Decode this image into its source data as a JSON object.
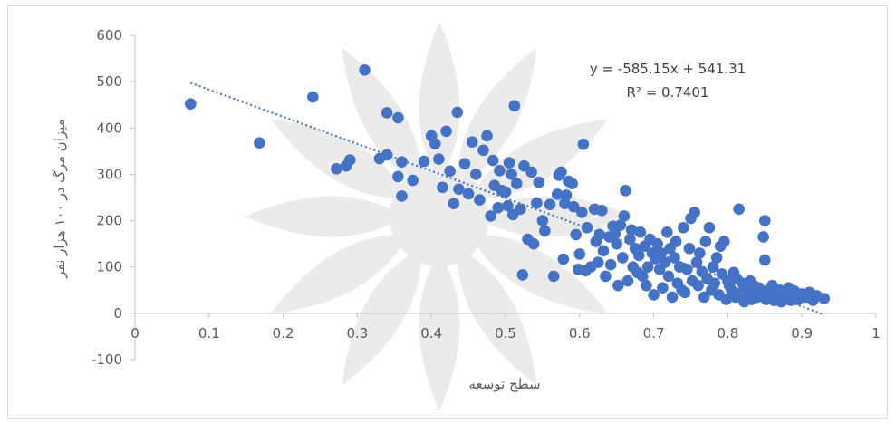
{
  "chart_data": {
    "type": "scatter",
    "xlabel": "سطح توسعه",
    "ylabel": "میزان مرگ در ۱۰۰ هزار نفر",
    "xlim": [
      0,
      1
    ],
    "ylim": [
      -100,
      600
    ],
    "x_ticks": [
      "0",
      "0.1",
      "0.2",
      "0.3",
      "0.4",
      "0.5",
      "0.6",
      "0.7",
      "0.8",
      "0.9",
      "1"
    ],
    "y_ticks": [
      "-100",
      "0",
      "100",
      "200",
      "300",
      "400",
      "500",
      "600"
    ],
    "grid": false,
    "legend": "none",
    "point_color": "#4472c4",
    "trendline": {
      "slope": -585.15,
      "intercept": 541.31,
      "x_range": [
        0.075,
        0.93
      ],
      "style": "dotted",
      "color": "#4472c4",
      "equation_text": "y = -585.15x + 541.31",
      "r2_text": "R² = 0.7401"
    },
    "series": [
      {
        "points": [
          [
            0.075,
            452
          ],
          [
            0.168,
            368
          ],
          [
            0.24,
            467
          ],
          [
            0.272,
            312
          ],
          [
            0.285,
            318
          ],
          [
            0.29,
            331
          ],
          [
            0.31,
            525
          ],
          [
            0.33,
            334
          ],
          [
            0.34,
            342
          ],
          [
            0.34,
            433
          ],
          [
            0.355,
            422
          ],
          [
            0.355,
            295
          ],
          [
            0.36,
            327
          ],
          [
            0.36,
            253
          ],
          [
            0.375,
            287
          ],
          [
            0.39,
            328
          ],
          [
            0.4,
            383
          ],
          [
            0.405,
            366
          ],
          [
            0.41,
            333
          ],
          [
            0.415,
            272
          ],
          [
            0.42,
            393
          ],
          [
            0.425,
            307
          ],
          [
            0.43,
            237
          ],
          [
            0.435,
            434
          ],
          [
            0.437,
            268
          ],
          [
            0.445,
            323
          ],
          [
            0.45,
            258
          ],
          [
            0.455,
            370
          ],
          [
            0.46,
            300
          ],
          [
            0.465,
            245
          ],
          [
            0.47,
            352
          ],
          [
            0.475,
            383
          ],
          [
            0.48,
            210
          ],
          [
            0.483,
            330
          ],
          [
            0.485,
            276
          ],
          [
            0.49,
            228
          ],
          [
            0.492,
            308
          ],
          [
            0.495,
            265
          ],
          [
            0.5,
            262
          ],
          [
            0.503,
            232
          ],
          [
            0.505,
            325
          ],
          [
            0.508,
            300
          ],
          [
            0.51,
            213
          ],
          [
            0.512,
            448
          ],
          [
            0.515,
            280
          ],
          [
            0.52,
            225
          ],
          [
            0.523,
            83
          ],
          [
            0.525,
            318
          ],
          [
            0.53,
            160
          ],
          [
            0.535,
            305
          ],
          [
            0.538,
            150
          ],
          [
            0.542,
            238
          ],
          [
            0.545,
            283
          ],
          [
            0.55,
            200
          ],
          [
            0.553,
            178
          ],
          [
            0.56,
            235
          ],
          [
            0.565,
            80
          ],
          [
            0.57,
            257
          ],
          [
            0.572,
            298
          ],
          [
            0.575,
            305
          ],
          [
            0.578,
            117
          ],
          [
            0.58,
            237
          ],
          [
            0.582,
            255
          ],
          [
            0.585,
            285
          ],
          [
            0.59,
            280
          ],
          [
            0.592,
            230
          ],
          [
            0.595,
            170
          ],
          [
            0.598,
            95
          ],
          [
            0.6,
            128
          ],
          [
            0.603,
            218
          ],
          [
            0.605,
            365
          ],
          [
            0.608,
            92
          ],
          [
            0.61,
            185
          ],
          [
            0.615,
            100
          ],
          [
            0.62,
            225
          ],
          [
            0.622,
            155
          ],
          [
            0.625,
            110
          ],
          [
            0.627,
            170
          ],
          [
            0.63,
            222
          ],
          [
            0.632,
            135
          ],
          [
            0.635,
            80
          ],
          [
            0.64,
            165
          ],
          [
            0.642,
            105
          ],
          [
            0.645,
            188
          ],
          [
            0.648,
            172
          ],
          [
            0.65,
            150
          ],
          [
            0.652,
            60
          ],
          [
            0.655,
            190
          ],
          [
            0.658,
            120
          ],
          [
            0.66,
            210
          ],
          [
            0.662,
            265
          ],
          [
            0.665,
            70
          ],
          [
            0.668,
            160
          ],
          [
            0.67,
            180
          ],
          [
            0.672,
            100
          ],
          [
            0.675,
            140
          ],
          [
            0.678,
            88
          ],
          [
            0.68,
            125
          ],
          [
            0.682,
            175
          ],
          [
            0.685,
            80
          ],
          [
            0.688,
            145
          ],
          [
            0.69,
            60
          ],
          [
            0.692,
            100
          ],
          [
            0.695,
            160
          ],
          [
            0.698,
            130
          ],
          [
            0.7,
            40
          ],
          [
            0.702,
            118
          ],
          [
            0.705,
            150
          ],
          [
            0.708,
            95
          ],
          [
            0.71,
            130
          ],
          [
            0.712,
            55
          ],
          [
            0.715,
            110
          ],
          [
            0.718,
            175
          ],
          [
            0.72,
            80
          ],
          [
            0.722,
            140
          ],
          [
            0.725,
            35
          ],
          [
            0.728,
            120
          ],
          [
            0.73,
            155
          ],
          [
            0.732,
            65
          ],
          [
            0.735,
            100
          ],
          [
            0.738,
            50
          ],
          [
            0.74,
            185
          ],
          [
            0.742,
            45
          ],
          [
            0.745,
            95
          ],
          [
            0.748,
            140
          ],
          [
            0.75,
            205
          ],
          [
            0.752,
            70
          ],
          [
            0.755,
            218
          ],
          [
            0.758,
            110
          ],
          [
            0.76,
            60
          ],
          [
            0.762,
            130
          ],
          [
            0.765,
            90
          ],
          [
            0.768,
            35
          ],
          [
            0.77,
            155
          ],
          [
            0.772,
            75
          ],
          [
            0.775,
            185
          ],
          [
            0.778,
            50
          ],
          [
            0.78,
            100
          ],
          [
            0.782,
            65
          ],
          [
            0.785,
            120
          ],
          [
            0.788,
            40
          ],
          [
            0.79,
            145
          ],
          [
            0.792,
            85
          ],
          [
            0.795,
            155
          ],
          [
            0.798,
            30
          ],
          [
            0.8,
            70
          ],
          [
            0.802,
            60
          ],
          [
            0.805,
            50
          ],
          [
            0.808,
            88
          ],
          [
            0.81,
            35
          ],
          [
            0.812,
            75
          ],
          [
            0.815,
            225
          ],
          [
            0.818,
            45
          ],
          [
            0.82,
            65
          ],
          [
            0.822,
            25
          ],
          [
            0.825,
            55
          ],
          [
            0.828,
            40
          ],
          [
            0.83,
            70
          ],
          [
            0.832,
            30
          ],
          [
            0.835,
            60
          ],
          [
            0.838,
            45
          ],
          [
            0.84,
            35
          ],
          [
            0.842,
            55
          ],
          [
            0.845,
            40
          ],
          [
            0.848,
            165
          ],
          [
            0.85,
            200
          ],
          [
            0.85,
            115
          ],
          [
            0.852,
            30
          ],
          [
            0.855,
            50
          ],
          [
            0.858,
            38
          ],
          [
            0.86,
            60
          ],
          [
            0.862,
            28
          ],
          [
            0.865,
            45
          ],
          [
            0.868,
            35
          ],
          [
            0.87,
            50
          ],
          [
            0.872,
            25
          ],
          [
            0.875,
            40
          ],
          [
            0.878,
            30
          ],
          [
            0.88,
            45
          ],
          [
            0.882,
            55
          ],
          [
            0.885,
            28
          ],
          [
            0.888,
            38
          ],
          [
            0.89,
            48
          ],
          [
            0.895,
            30
          ],
          [
            0.9,
            42
          ],
          [
            0.905,
            35
          ],
          [
            0.91,
            45
          ],
          [
            0.915,
            28
          ],
          [
            0.92,
            38
          ],
          [
            0.93,
            32
          ]
        ]
      }
    ]
  }
}
